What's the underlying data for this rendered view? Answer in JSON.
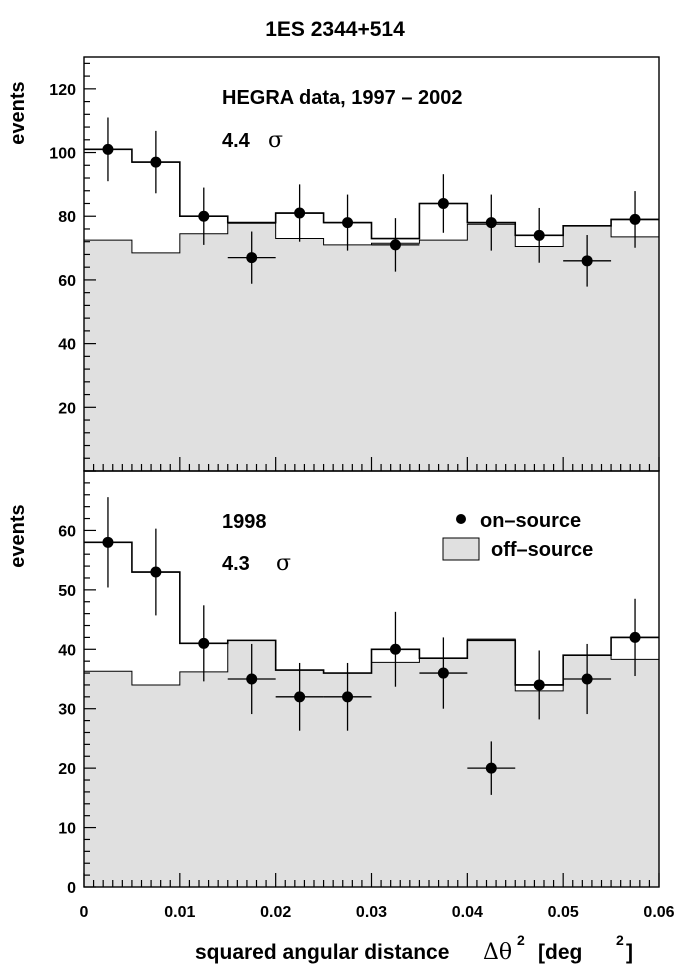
{
  "chart_data": {
    "title": "1ES 2344+514",
    "type": "histogram-with-points",
    "xlabel": "squared angular distance",
    "xlabel_symbol": "Δθ",
    "xlabel_exp": "2",
    "xlabel_unit_open": "[deg",
    "xlabel_unit_exp": "2",
    "xlabel_unit_close": "]",
    "x_ticks": [
      "0",
      "0.01",
      "0.02",
      "0.03",
      "0.04",
      "0.05",
      "0.06"
    ],
    "xlim": [
      0,
      0.06
    ],
    "bin_edges": [
      0,
      0.005,
      0.01,
      0.015,
      0.02,
      0.025,
      0.03,
      0.035,
      0.04,
      0.045,
      0.05,
      0.055,
      0.06
    ],
    "legend": {
      "on_label": "on–source",
      "off_label": "off–source"
    },
    "colors": {
      "off_fill": "#e0e0e0",
      "line": "#000000",
      "points": "#000000"
    },
    "panels": [
      {
        "ylabel": "events",
        "ylim": [
          0,
          130
        ],
        "y_ticks": [
          20,
          40,
          60,
          80,
          100,
          120
        ],
        "annotation_line1": "HEGRA data, 1997 – 2002",
        "sigma_value": "4.4",
        "sigma_symbol": "σ",
        "on_source": {
          "x": [
            0.0025,
            0.0075,
            0.0125,
            0.0175,
            0.0225,
            0.0275,
            0.0325,
            0.0375,
            0.0425,
            0.0475,
            0.0525,
            0.0575
          ],
          "y": [
            101,
            97,
            80,
            67,
            81,
            78,
            71,
            84,
            78,
            74,
            66,
            79
          ],
          "y_err": [
            10,
            9.8,
            9,
            8.2,
            9,
            8.8,
            8.4,
            9.2,
            8.8,
            8.6,
            8.1,
            8.9
          ]
        },
        "on_source_hist": [
          101,
          97,
          80,
          78,
          81,
          78,
          73,
          84,
          78,
          74,
          77,
          79
        ],
        "off_source": [
          72.5,
          68.5,
          74.5,
          77.8,
          73,
          71,
          71.5,
          72.5,
          77.5,
          70.5,
          77,
          73.5
        ]
      },
      {
        "ylabel": "events",
        "ylim": [
          0,
          70
        ],
        "y_ticks": [
          0,
          10,
          20,
          30,
          40,
          50,
          60
        ],
        "annotation_line1": "1998",
        "sigma_value": "4.3",
        "sigma_symbol": "σ",
        "on_source": {
          "x": [
            0.0025,
            0.0075,
            0.0125,
            0.0175,
            0.0225,
            0.0275,
            0.0325,
            0.0375,
            0.0425,
            0.0475,
            0.0525,
            0.0575
          ],
          "y": [
            58,
            53,
            41,
            35,
            32,
            32,
            40,
            36,
            20,
            34,
            35,
            42
          ],
          "y_err": [
            7.6,
            7.3,
            6.4,
            5.9,
            5.7,
            5.7,
            6.3,
            6.0,
            4.5,
            5.8,
            5.9,
            6.5
          ]
        },
        "on_source_hist": [
          58,
          53,
          41,
          41.5,
          36.5,
          36,
          40,
          38.5,
          41.5,
          34,
          39,
          42
        ],
        "off_source": [
          36.3,
          34,
          36.2,
          41.5,
          36.5,
          36,
          37.8,
          38.5,
          41.7,
          33,
          39,
          38.3
        ]
      }
    ]
  }
}
